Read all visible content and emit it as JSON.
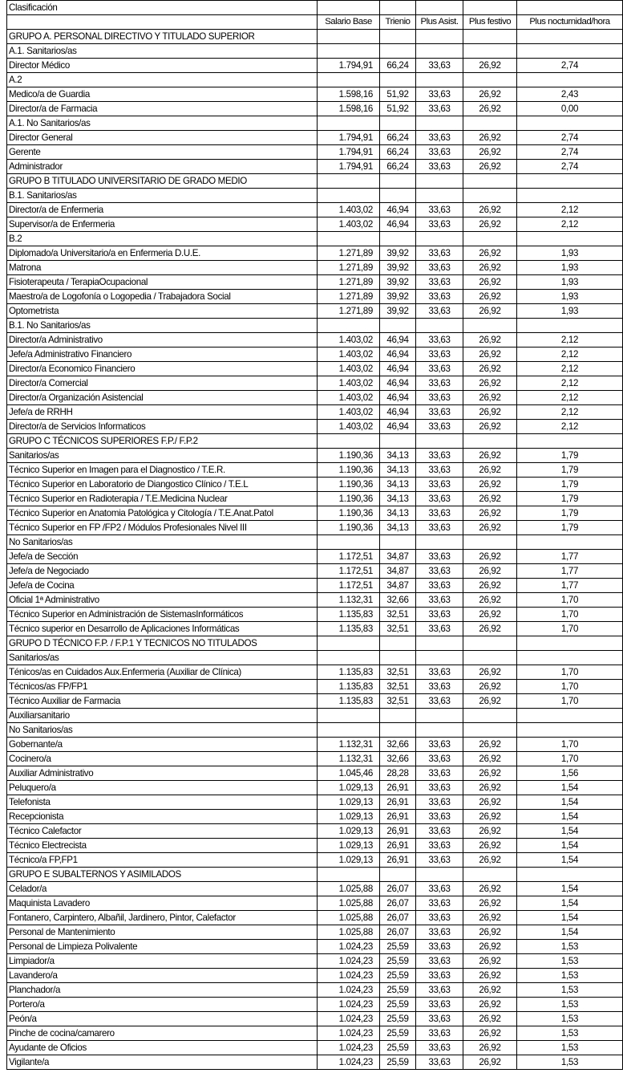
{
  "title": "Clasificación",
  "headers": [
    "Salario Base",
    "Trienio",
    "Plus Asist.",
    "Plus festivo",
    "Plus nocturnidad/hora"
  ],
  "rows": [
    [
      "GRUPO A. PERSONAL DIRECTIVO Y TITULADO SUPERIOR"
    ],
    [
      "A.1. Sanitarios/as"
    ],
    [
      "Director Médico",
      "1.794,91",
      "66,24",
      "33,63",
      "26,92",
      "2,74"
    ],
    [
      "A.2"
    ],
    [
      "Medico/a de Guardia",
      "1.598,16",
      "51,92",
      "33,63",
      "26,92",
      "2,43"
    ],
    [
      "Director/a de Farmacia",
      "1.598,16",
      "51,92",
      "33,63",
      "26,92",
      "0,00"
    ],
    [
      "A.1. No Sanitarios/as"
    ],
    [
      "Director General",
      "1.794,91",
      "66,24",
      "33,63",
      "26,92",
      "2,74"
    ],
    [
      "Gerente",
      "1.794,91",
      "66,24",
      "33,63",
      "26,92",
      "2,74"
    ],
    [
      "Administrador",
      "1.794,91",
      "66,24",
      "33,63",
      "26,92",
      "2,74"
    ],
    [
      "GRUPO B TITULADO UNIVERSITARIO DE GRADO MEDIO"
    ],
    [
      "B.1. Sanitarios/as"
    ],
    [
      "Director/a de Enfermeria",
      "1.403,02",
      "46,94",
      "33,63",
      "26,92",
      "2,12"
    ],
    [
      "Supervisor/a de Enfermeria",
      "1.403,02",
      "46,94",
      "33,63",
      "26,92",
      "2,12"
    ],
    [
      "B.2"
    ],
    [
      "Diplomado/a Universitario/a en Enfermeria D.U.E.",
      "1.271,89",
      "39,92",
      "33,63",
      "26,92",
      "1,93"
    ],
    [
      "Matrona",
      "1.271,89",
      "39,92",
      "33,63",
      "26,92",
      "1,93"
    ],
    [
      "Fisioterapeuta / TerapiaOcupacional",
      "1.271,89",
      "39,92",
      "33,63",
      "26,92",
      "1,93"
    ],
    [
      "Maestro/a de Logofonía o Logopedia / Trabajadora Social",
      "1.271,89",
      "39,92",
      "33,63",
      "26,92",
      "1,93"
    ],
    [
      "Optometrista",
      "1.271,89",
      "39,92",
      "33,63",
      "26,92",
      "1,93"
    ],
    [
      "B.1. No Sanitarios/as"
    ],
    [
      "Director/a Administrativo",
      "1.403,02",
      "46,94",
      "33,63",
      "26,92",
      "2,12"
    ],
    [
      "Jefe/a Administrativo Financiero",
      "1.403,02",
      "46,94",
      "33,63",
      "26,92",
      "2,12"
    ],
    [
      "Director/a Economico Financiero",
      "1.403,02",
      "46,94",
      "33,63",
      "26,92",
      "2,12"
    ],
    [
      "Director/a Comercial",
      "1.403,02",
      "46,94",
      "33,63",
      "26,92",
      "2,12"
    ],
    [
      "Director/a Organización Asistencial",
      "1.403,02",
      "46,94",
      "33,63",
      "26,92",
      "2,12"
    ],
    [
      "Jefe/a de RRHH",
      "1.403,02",
      "46,94",
      "33,63",
      "26,92",
      "2,12"
    ],
    [
      "Director/a de Servicios Informaticos",
      "1.403,02",
      "46,94",
      "33,63",
      "26,92",
      "2,12"
    ],
    [
      "GRUPO C TÉCNICOS SUPERIORES F.P./ F.P.2"
    ],
    [
      "Sanitarios/as",
      "1.190,36",
      "34,13",
      "33,63",
      "26,92",
      "1,79"
    ],
    [
      "Técnico Superior en Imagen para el Diagnostico / T.E.R.",
      "1.190,36",
      "34,13",
      "33,63",
      "26,92",
      "1,79"
    ],
    [
      "Técnico Superior en Laboratorio de Diangostico Clínico / T.E.L",
      "1.190,36",
      "34,13",
      "33,63",
      "26,92",
      "1,79"
    ],
    [
      "Técnico Superior en Radioterapia / T.E.Medicina Nuclear",
      "1.190,36",
      "34,13",
      "33,63",
      "26,92",
      "1,79"
    ],
    [
      "Técnico Superior en Anatomia Patológica y Citología / T.E.Anat.Patol",
      "1.190,36",
      "34,13",
      "33,63",
      "26,92",
      "1,79"
    ],
    [
      "Técnico Superior en FP /FP2 / Módulos Profesionales Nivel III",
      "1.190,36",
      "34,13",
      "33,63",
      "26,92",
      "1,79"
    ],
    [
      "No Sanitarios/as"
    ],
    [
      "Jefe/a de Sección",
      "1.172,51",
      "34,87",
      "33,63",
      "26,92",
      "1,77"
    ],
    [
      "Jefe/a de Negociado",
      "1.172,51",
      "34,87",
      "33,63",
      "26,92",
      "1,77"
    ],
    [
      "Jefe/a de Cocina",
      "1.172,51",
      "34,87",
      "33,63",
      "26,92",
      "1,77"
    ],
    [
      "Oficial 1ª Administrativo",
      "1.132,31",
      "32,66",
      "33,63",
      "26,92",
      "1,70"
    ],
    [
      "Técnico Superior en Administración de SistemasInformáticos",
      "1.135,83",
      "32,51",
      "33,63",
      "26,92",
      "1,70"
    ],
    [
      "Técnico superior en Desarrollo de Aplicaciones Informáticas",
      "1.135,83",
      "32,51",
      "33,63",
      "26,92",
      "1,70"
    ],
    [
      "GRUPO D TÉCNICO F.P. / F.P.1 Y TECNICOS NO TITULADOS"
    ],
    [
      "Sanitarios/as"
    ],
    [
      "Ténicos/as en Cuidados Aux.Enfermeria (Auxiliar de Clínica)",
      "1.135,83",
      "32,51",
      "33,63",
      "26,92",
      "1,70"
    ],
    [
      "Técnicos/as FP/FP1",
      "1.135,83",
      "32,51",
      "33,63",
      "26,92",
      "1,70"
    ],
    [
      "Técnico Auxiliar de Farmacia",
      "1.135,83",
      "32,51",
      "33,63",
      "26,92",
      "1,70"
    ],
    [
      "Auxiliarsanitario"
    ],
    [
      "No Sanitarios/as"
    ],
    [
      "Gobernante/a",
      "1.132,31",
      "32,66",
      "33,63",
      "26,92",
      "1,70"
    ],
    [
      "Cocinero/a",
      "1.132,31",
      "32,66",
      "33,63",
      "26,92",
      "1,70"
    ],
    [
      "Auxiliar Administrativo",
      "1.045,46",
      "28,28",
      "33,63",
      "26,92",
      "1,56"
    ],
    [
      "Peluquero/a",
      "1.029,13",
      "26,91",
      "33,63",
      "26,92",
      "1,54"
    ],
    [
      "Telefonista",
      "1.029,13",
      "26,91",
      "33,63",
      "26,92",
      "1,54"
    ],
    [
      "Recepcionista",
      "1.029,13",
      "26,91",
      "33,63",
      "26,92",
      "1,54"
    ],
    [
      "Técnico Calefactor",
      "1.029,13",
      "26,91",
      "33,63",
      "26,92",
      "1,54"
    ],
    [
      "Técnico Electrecista",
      "1.029,13",
      "26,91",
      "33,63",
      "26,92",
      "1,54"
    ],
    [
      "Técnico/a FP,FP1",
      "1.029,13",
      "26,91",
      "33,63",
      "26,92",
      "1,54"
    ],
    [
      "GRUPO E SUBALTERNOS Y ASIMILADOS"
    ],
    [
      "Celador/a",
      "1.025,88",
      "26,07",
      "33,63",
      "26,92",
      "1,54"
    ],
    [
      "Maquinista Lavadero",
      "1.025,88",
      "26,07",
      "33,63",
      "26,92",
      "1,54"
    ],
    [
      "Fontanero, Carpintero, Albañil, Jardinero, Pintor, Calefactor",
      "1.025,88",
      "26,07",
      "33,63",
      "26,92",
      "1,54"
    ],
    [
      "Personal de Mantenimiento",
      "1.025,88",
      "26,07",
      "33,63",
      "26,92",
      "1,54"
    ],
    [
      "Personal de Limpieza Polivalente",
      "1.024,23",
      "25,59",
      "33,63",
      "26,92",
      "1,53"
    ],
    [
      "Limpiador/a",
      "1.024,23",
      "25,59",
      "33,63",
      "26,92",
      "1,53"
    ],
    [
      "Lavandero/a",
      "1.024,23",
      "25,59",
      "33,63",
      "26,92",
      "1,53"
    ],
    [
      "Planchador/a",
      "1.024,23",
      "25,59",
      "33,63",
      "26,92",
      "1,53"
    ],
    [
      "Portero/a",
      "1.024,23",
      "25,59",
      "33,63",
      "26,92",
      "1,53"
    ],
    [
      "Peón/a",
      "1.024,23",
      "25,59",
      "33,63",
      "26,92",
      "1,53"
    ],
    [
      "Pinche de cocina/camarero",
      "1.024,23",
      "25,59",
      "33,63",
      "26,92",
      "1,53"
    ],
    [
      "Ayudante de Oficios",
      "1.024,23",
      "25,59",
      "33,63",
      "26,92",
      "1,53"
    ],
    [
      "Vigilante/a",
      "1.024,23",
      "25,59",
      "33,63",
      "26,92",
      "1,53"
    ]
  ]
}
